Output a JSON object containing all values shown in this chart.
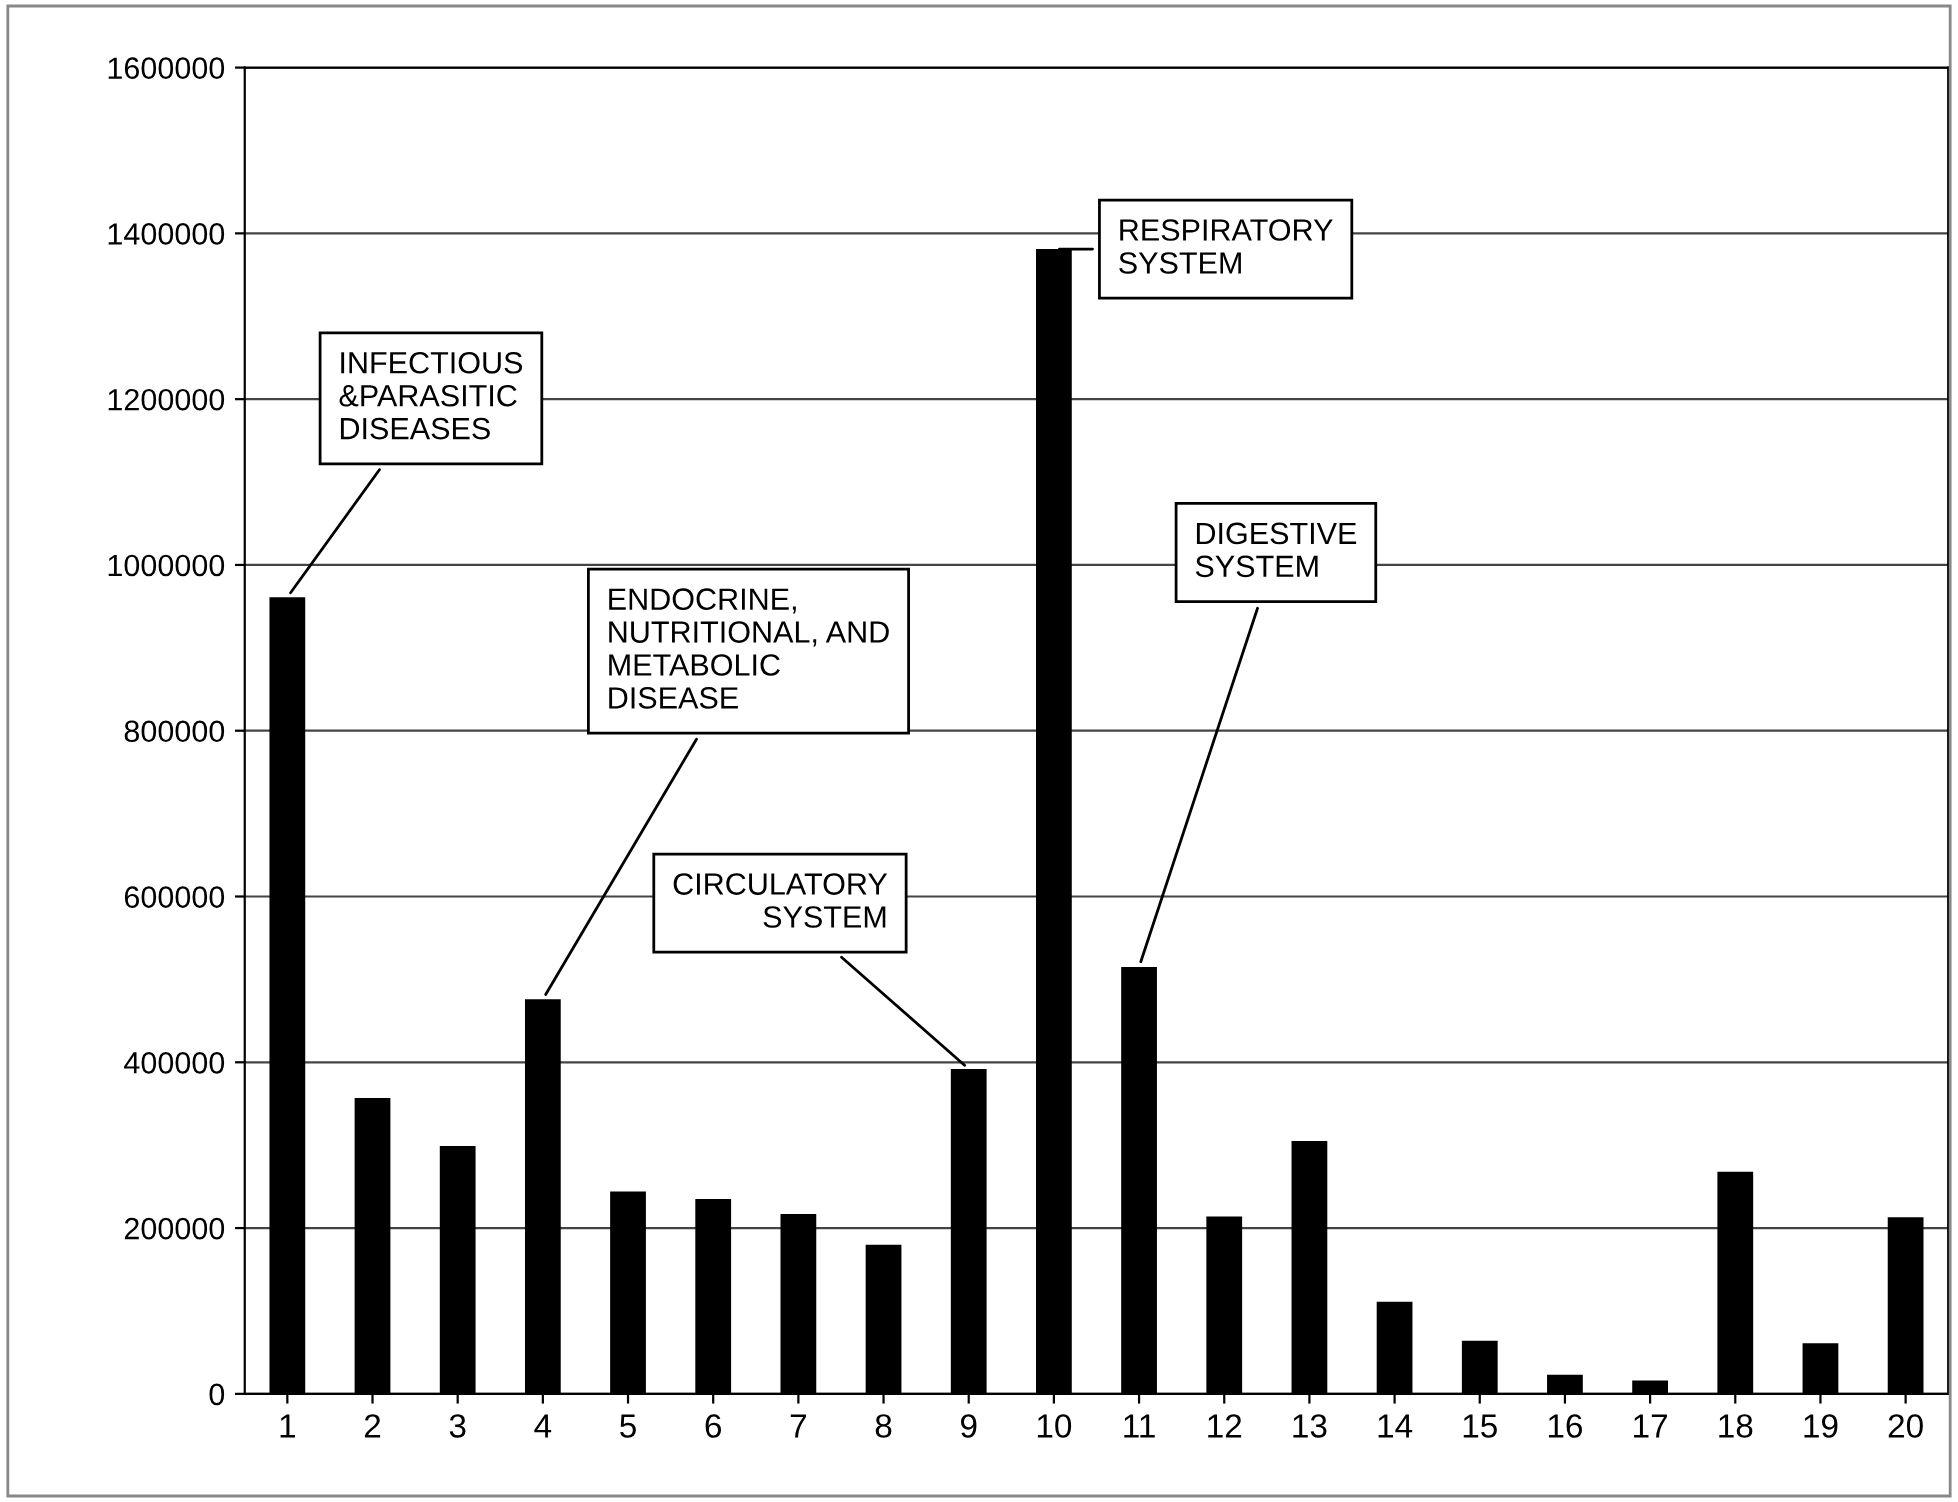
{
  "chart_data": {
    "type": "bar",
    "categories": [
      "1",
      "2",
      "3",
      "4",
      "5",
      "6",
      "7",
      "8",
      "9",
      "10",
      "11",
      "12",
      "13",
      "14",
      "15",
      "16",
      "17",
      "18",
      "19",
      "20"
    ],
    "values": [
      961000,
      357000,
      299000,
      476000,
      244000,
      235000,
      217000,
      180000,
      392000,
      1381000,
      515000,
      214000,
      305000,
      111000,
      64000,
      23000,
      16000,
      268000,
      61000,
      213000
    ],
    "color": "#000000",
    "ylim": [
      0,
      1600000
    ],
    "yticks": [
      0,
      200000,
      400000,
      600000,
      800000,
      1000000,
      1200000,
      1400000,
      1600000
    ],
    "grid": "y",
    "annotations": [
      {
        "text": "INFECTIOUS\n&PARASITIC\nDISEASES",
        "x": "1",
        "y": 961000
      },
      {
        "text": "ENDOCRINE,\nNUTRITIONAL, AND\nMETABOLIC\nDISEASE",
        "x": "4",
        "y": 476000
      },
      {
        "text": "CIRCULATORY\nSYSTEM",
        "x": "9",
        "y": 392000
      },
      {
        "text": "RESPIRATORY\nSYSTEM",
        "x": "10",
        "y": 1381000
      },
      {
        "text": "DIGESTIVE\nSYSTEM",
        "x": "11",
        "y": 515000
      }
    ]
  }
}
